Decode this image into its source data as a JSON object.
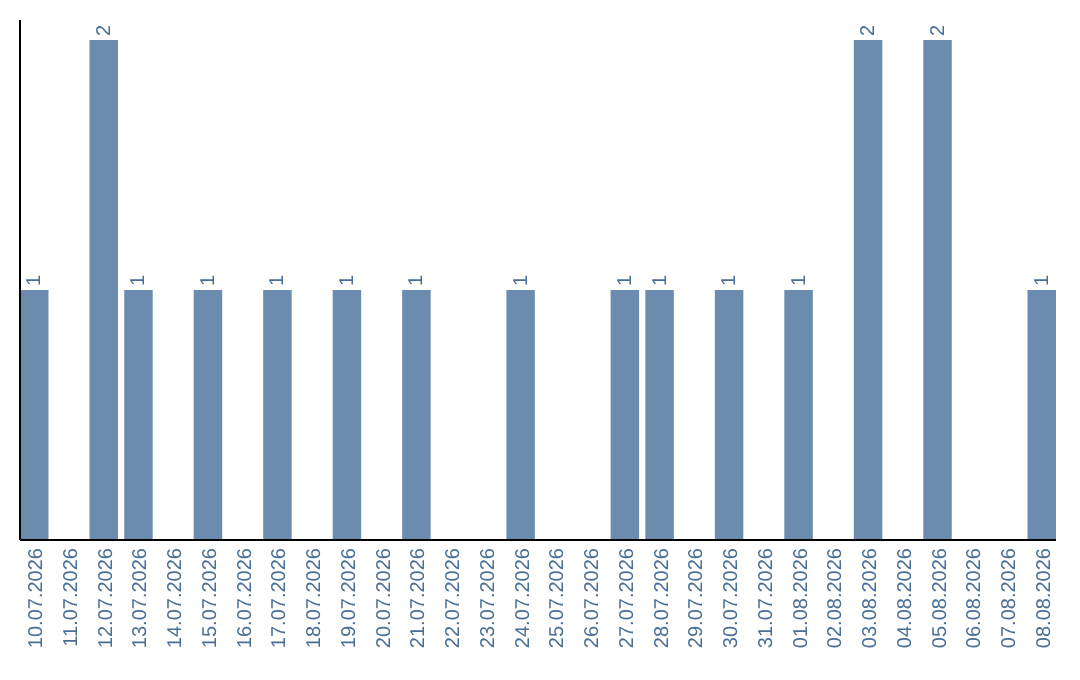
{
  "chart_data": {
    "type": "bar",
    "categories": [
      "10.07.2026",
      "11.07.2026",
      "12.07.2026",
      "13.07.2026",
      "14.07.2026",
      "15.07.2026",
      "16.07.2026",
      "17.07.2026",
      "18.07.2026",
      "19.07.2026",
      "20.07.2026",
      "21.07.2026",
      "22.07.2026",
      "23.07.2026",
      "24.07.2026",
      "25.07.2026",
      "26.07.2026",
      "27.07.2026",
      "28.07.2026",
      "29.07.2026",
      "30.07.2026",
      "31.07.2026",
      "01.08.2026",
      "02.08.2026",
      "03.08.2026",
      "04.08.2026",
      "05.08.2026",
      "06.08.2026",
      "07.08.2026",
      "08.08.2026"
    ],
    "values": [
      1,
      0,
      2,
      1,
      0,
      1,
      0,
      1,
      0,
      1,
      0,
      1,
      0,
      0,
      1,
      0,
      0,
      1,
      1,
      0,
      1,
      0,
      1,
      0,
      2,
      0,
      2,
      0,
      0,
      1
    ],
    "value_labels": [
      "1",
      null,
      "2",
      "1",
      null,
      "1",
      null,
      "1",
      null,
      "1",
      null,
      "1",
      null,
      null,
      "1",
      null,
      null,
      "1",
      "1",
      null,
      "1",
      null,
      "1",
      null,
      "2",
      null,
      "2",
      null,
      null,
      "1"
    ],
    "color": "#6b8cae",
    "ylim": [
      0,
      2.08
    ],
    "tick_labels": "x"
  }
}
